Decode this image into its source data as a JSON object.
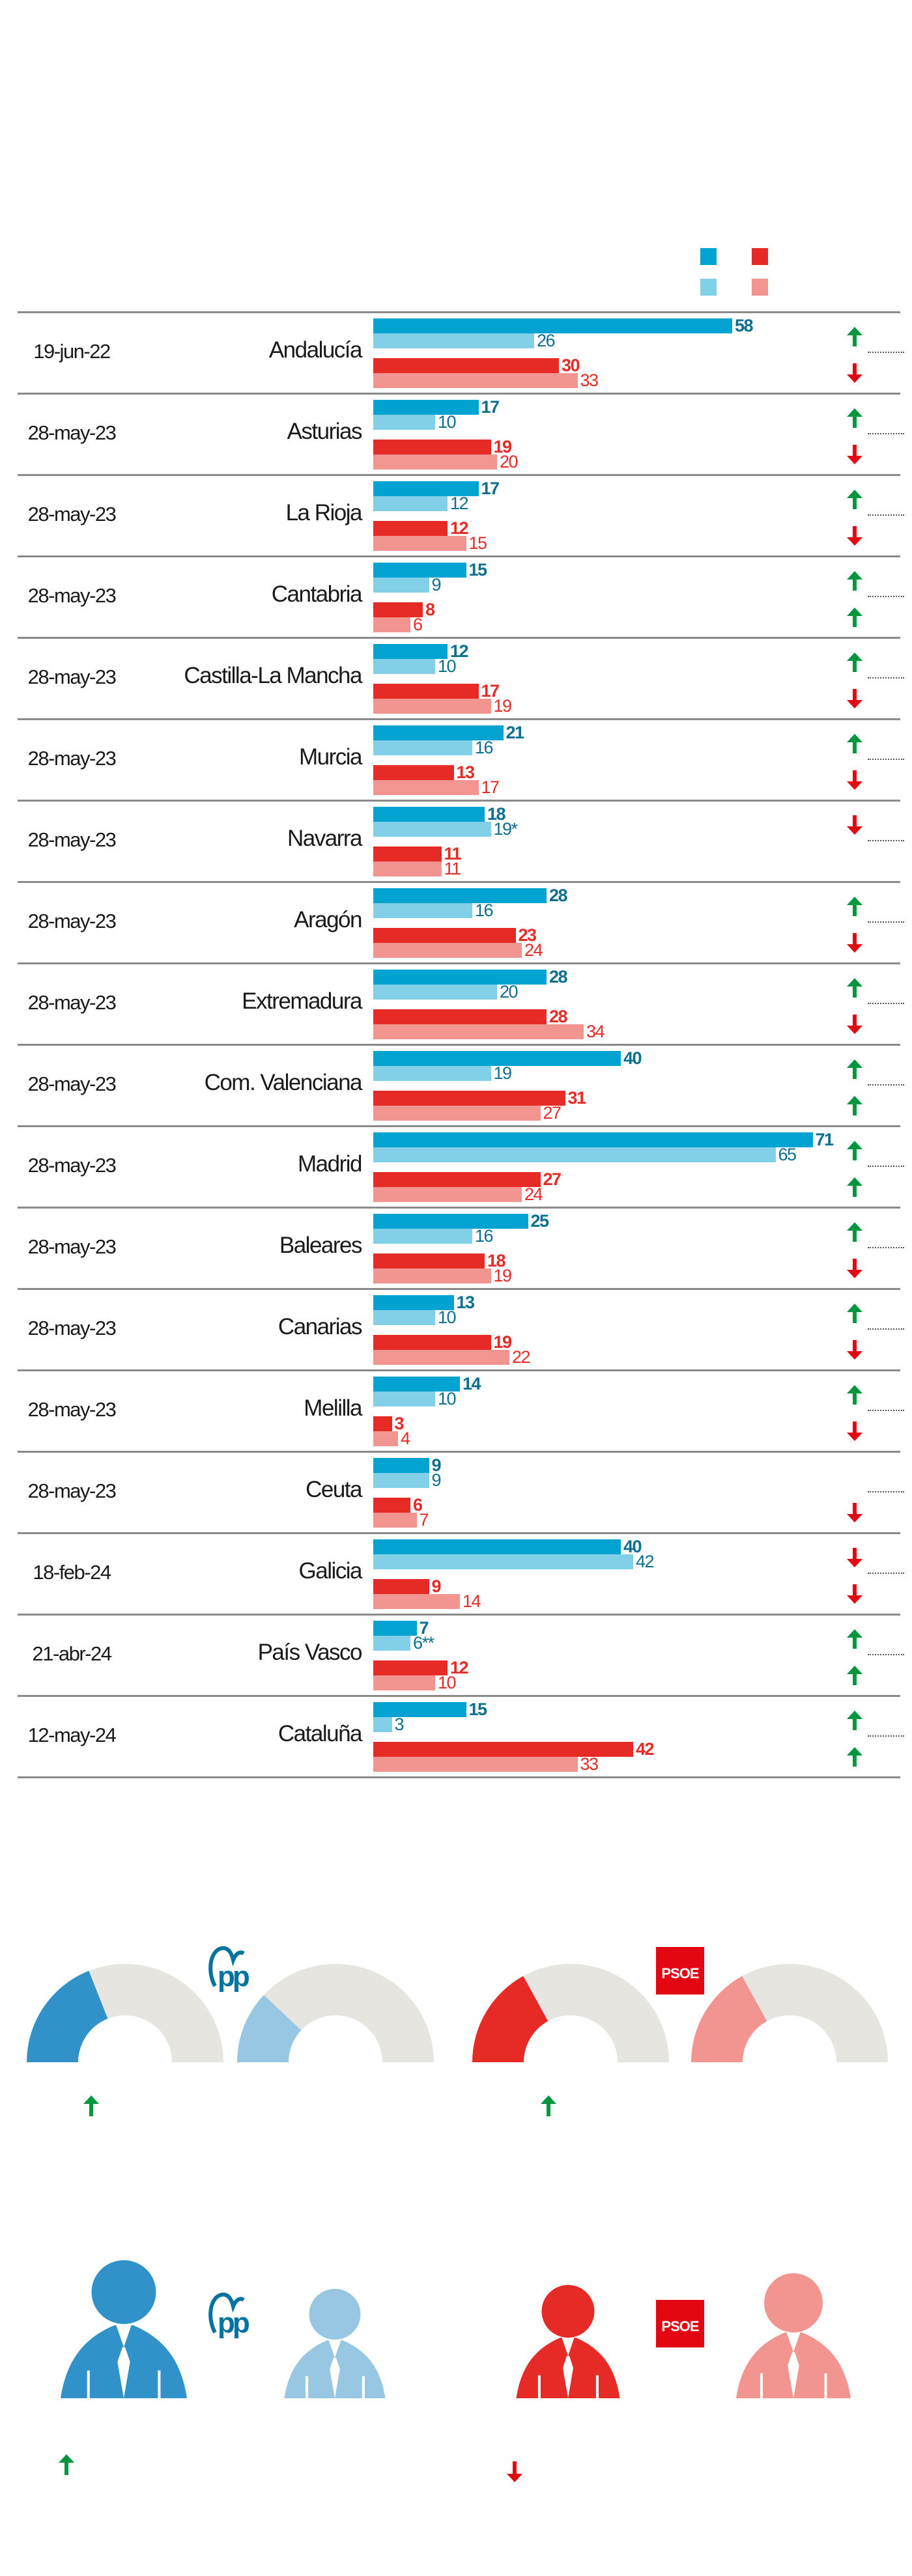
{
  "colors": {
    "pp_current": "#02a3d1",
    "pp_previous": "#82cfe8",
    "pp_label": "#0b6f90",
    "psoe_current": "#e62b27",
    "psoe_previous": "#f29590",
    "psoe_label": "#e62b27",
    "arrow_up": "#009640",
    "arrow_down": "#e30613",
    "pp_gauge": "#3092c9",
    "pp_gauge_light": "#98c7e3",
    "gauge_rest": "#e6e5e0",
    "pp_logo": "#00739e",
    "psoe_logo": "#e30613"
  },
  "legend": [
    "pp-current",
    "psoe-current",
    "pp-previous",
    "psoe-previous"
  ],
  "chart_data": {
    "type": "bar",
    "orientation": "horizontal",
    "categories": [
      "Andalucía",
      "Asturias",
      "La Rioja",
      "Cantabria",
      "Castilla-La Mancha",
      "Murcia",
      "Navarra",
      "Aragón",
      "Extremadura",
      "Com. Valenciana",
      "Madrid",
      "Baleares",
      "Canarias",
      "Melilla",
      "Ceuta",
      "Galicia",
      "País Vasco",
      "Cataluña"
    ],
    "rows": [
      {
        "date": "19-jun-22",
        "region": "Andalucía",
        "pp": 58,
        "pp_prev": "26",
        "psoe": 30,
        "psoe_prev": "33",
        "pp_trend": "up",
        "psoe_trend": "down"
      },
      {
        "date": "28-may-23",
        "region": "Asturias",
        "pp": 17,
        "pp_prev": "10",
        "psoe": 19,
        "psoe_prev": "20",
        "pp_trend": "up",
        "psoe_trend": "down"
      },
      {
        "date": "28-may-23",
        "region": "La Rioja",
        "pp": 17,
        "pp_prev": "12",
        "psoe": 12,
        "psoe_prev": "15",
        "pp_trend": "up",
        "psoe_trend": "down"
      },
      {
        "date": "28-may-23",
        "region": "Cantabria",
        "pp": 15,
        "pp_prev": "9",
        "psoe": 8,
        "psoe_prev": "6",
        "pp_trend": "up",
        "psoe_trend": "up"
      },
      {
        "date": "28-may-23",
        "region": "Castilla-La Mancha",
        "pp": 12,
        "pp_prev": "10",
        "psoe": 17,
        "psoe_prev": "19",
        "pp_trend": "up",
        "psoe_trend": "down"
      },
      {
        "date": "28-may-23",
        "region": "Murcia",
        "pp": 21,
        "pp_prev": "16",
        "psoe": 13,
        "psoe_prev": "17",
        "pp_trend": "up",
        "psoe_trend": "down"
      },
      {
        "date": "28-may-23",
        "region": "Navarra",
        "pp": 18,
        "pp_prev": "19*",
        "psoe": 11,
        "psoe_prev": "11",
        "pp_trend": "down",
        "psoe_trend": null
      },
      {
        "date": "28-may-23",
        "region": "Aragón",
        "pp": 28,
        "pp_prev": "16",
        "psoe": 23,
        "psoe_prev": "24",
        "pp_trend": "up",
        "psoe_trend": "down"
      },
      {
        "date": "28-may-23",
        "region": "Extremadura",
        "pp": 28,
        "pp_prev": "20",
        "psoe": 28,
        "psoe_prev": "34",
        "pp_trend": "up",
        "psoe_trend": "down"
      },
      {
        "date": "28-may-23",
        "region": "Com. Valenciana",
        "pp": 40,
        "pp_prev": "19",
        "psoe": 31,
        "psoe_prev": "27",
        "pp_trend": "up",
        "psoe_trend": "up"
      },
      {
        "date": "28-may-23",
        "region": "Madrid",
        "pp": 71,
        "pp_prev": "65",
        "psoe": 27,
        "psoe_prev": "24",
        "pp_trend": "up",
        "psoe_trend": "up"
      },
      {
        "date": "28-may-23",
        "region": "Baleares",
        "pp": 25,
        "pp_prev": "16",
        "psoe": 18,
        "psoe_prev": "19",
        "pp_trend": "up",
        "psoe_trend": "down"
      },
      {
        "date": "28-may-23",
        "region": "Canarias",
        "pp": 13,
        "pp_prev": "10",
        "psoe": 19,
        "psoe_prev": "22",
        "pp_trend": "up",
        "psoe_trend": "down"
      },
      {
        "date": "28-may-23",
        "region": "Melilla",
        "pp": 14,
        "pp_prev": "10",
        "psoe": 3,
        "psoe_prev": "4",
        "pp_trend": "up",
        "psoe_trend": "down"
      },
      {
        "date": "28-may-23",
        "region": "Ceuta",
        "pp": 9,
        "pp_prev": "9",
        "psoe": 6,
        "psoe_prev": "7",
        "pp_trend": null,
        "psoe_trend": "down"
      },
      {
        "date": "18-feb-24",
        "region": "Galicia",
        "pp": 40,
        "pp_prev": "42",
        "psoe": 9,
        "psoe_prev": "14",
        "pp_trend": "down",
        "psoe_trend": "down"
      },
      {
        "date": "21-abr-24",
        "region": "País Vasco",
        "pp": 7,
        "pp_prev": "6**",
        "psoe": 12,
        "psoe_prev": "10",
        "pp_trend": "up",
        "psoe_trend": "up"
      },
      {
        "date": "12-may-24",
        "region": "Cataluña",
        "pp": 15,
        "pp_prev": "3",
        "psoe": 42,
        "psoe_prev": "33",
        "pp_trend": "up",
        "psoe_trend": "up"
      }
    ]
  },
  "gauges": {
    "items": [
      {
        "party": "pp",
        "period": "current",
        "share": 0.38
      },
      {
        "party": "pp",
        "period": "previous",
        "share": 0.24
      },
      {
        "party": "psoe",
        "period": "current",
        "share": 0.34
      },
      {
        "party": "psoe",
        "period": "previous",
        "share": 0.34
      }
    ],
    "pp_trend": "up",
    "psoe_trend": "up"
  },
  "figures": {
    "pp_trend": "up",
    "psoe_trend": "down"
  },
  "logos": {
    "pp": "PP",
    "psoe": "PSOE"
  }
}
